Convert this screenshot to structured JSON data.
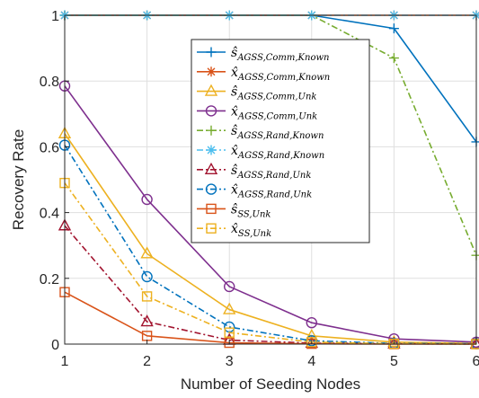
{
  "chart_data": {
    "type": "line",
    "xlabel": "Number of Seeding Nodes",
    "ylabel": "Recovery Rate",
    "xlim": [
      1,
      6
    ],
    "ylim": [
      0,
      1
    ],
    "xticks": [
      1,
      2,
      3,
      4,
      5,
      6
    ],
    "yticks": [
      0,
      0.2,
      0.4,
      0.6,
      0.8,
      1
    ],
    "xtick_labels": [
      "1",
      "2",
      "3",
      "4",
      "5",
      "6"
    ],
    "ytick_labels": [
      "0",
      "0.2",
      "0.4",
      "0.6",
      "0.8",
      "1"
    ],
    "grid": true,
    "legend_position": "upper-center",
    "x": [
      1,
      2,
      3,
      4,
      5,
      6
    ],
    "series": [
      {
        "name_base": "ŝ",
        "name_sub": "AGSS,Comm,Known",
        "color": "#0072bd",
        "dash": "solid",
        "marker": "plus",
        "values": [
          1,
          1,
          1,
          1,
          0.96,
          0.615
        ]
      },
      {
        "name_base": "x̂",
        "name_sub": "AGSS,Comm,Known",
        "color": "#d95319",
        "dash": "solid",
        "marker": "asterisk",
        "values": [
          1,
          1,
          1,
          1,
          1,
          1
        ]
      },
      {
        "name_base": "ŝ",
        "name_sub": "AGSS,Comm,Unk",
        "color": "#edb120",
        "dash": "solid",
        "marker": "triangle",
        "values": [
          0.64,
          0.275,
          0.105,
          0.025,
          0.006,
          0.002
        ]
      },
      {
        "name_base": "x̂",
        "name_sub": "AGSS,Comm,Unk",
        "color": "#7e2f8e",
        "dash": "solid",
        "marker": "circle",
        "values": [
          0.785,
          0.44,
          0.175,
          0.065,
          0.016,
          0.006
        ]
      },
      {
        "name_base": "ŝ",
        "name_sub": "AGSS,Rand,Known",
        "color": "#77ac30",
        "dash": "dashdot",
        "marker": "plus",
        "values": [
          1,
          1,
          1,
          1,
          0.87,
          0.27
        ]
      },
      {
        "name_base": "x̂",
        "name_sub": "AGSS,Rand,Known",
        "color": "#4dbeee",
        "dash": "dashdot",
        "marker": "asterisk",
        "values": [
          1,
          1,
          1,
          1,
          1,
          1
        ]
      },
      {
        "name_base": "ŝ",
        "name_sub": "AGSS,Rand,Unk",
        "color": "#a2142f",
        "dash": "dashdot",
        "marker": "triangle",
        "values": [
          0.36,
          0.068,
          0.012,
          0.003,
          0.001,
          0.0
        ]
      },
      {
        "name_base": "x̂",
        "name_sub": "AGSS,Rand,Unk",
        "color": "#0072bd",
        "dash": "dashdot",
        "marker": "circle",
        "values": [
          0.605,
          0.205,
          0.052,
          0.01,
          0.002,
          0.001
        ]
      },
      {
        "name_base": "ŝ",
        "name_sub": "SS,Unk",
        "color": "#d95319",
        "dash": "solid",
        "marker": "square",
        "values": [
          0.158,
          0.025,
          0.004,
          0.001,
          0.0,
          0.0
        ]
      },
      {
        "name_base": "x̂",
        "name_sub": "SS,Unk",
        "color": "#edb120",
        "dash": "dashdot",
        "marker": "square",
        "values": [
          0.49,
          0.145,
          0.035,
          0.006,
          0.001,
          0.0
        ]
      }
    ]
  }
}
